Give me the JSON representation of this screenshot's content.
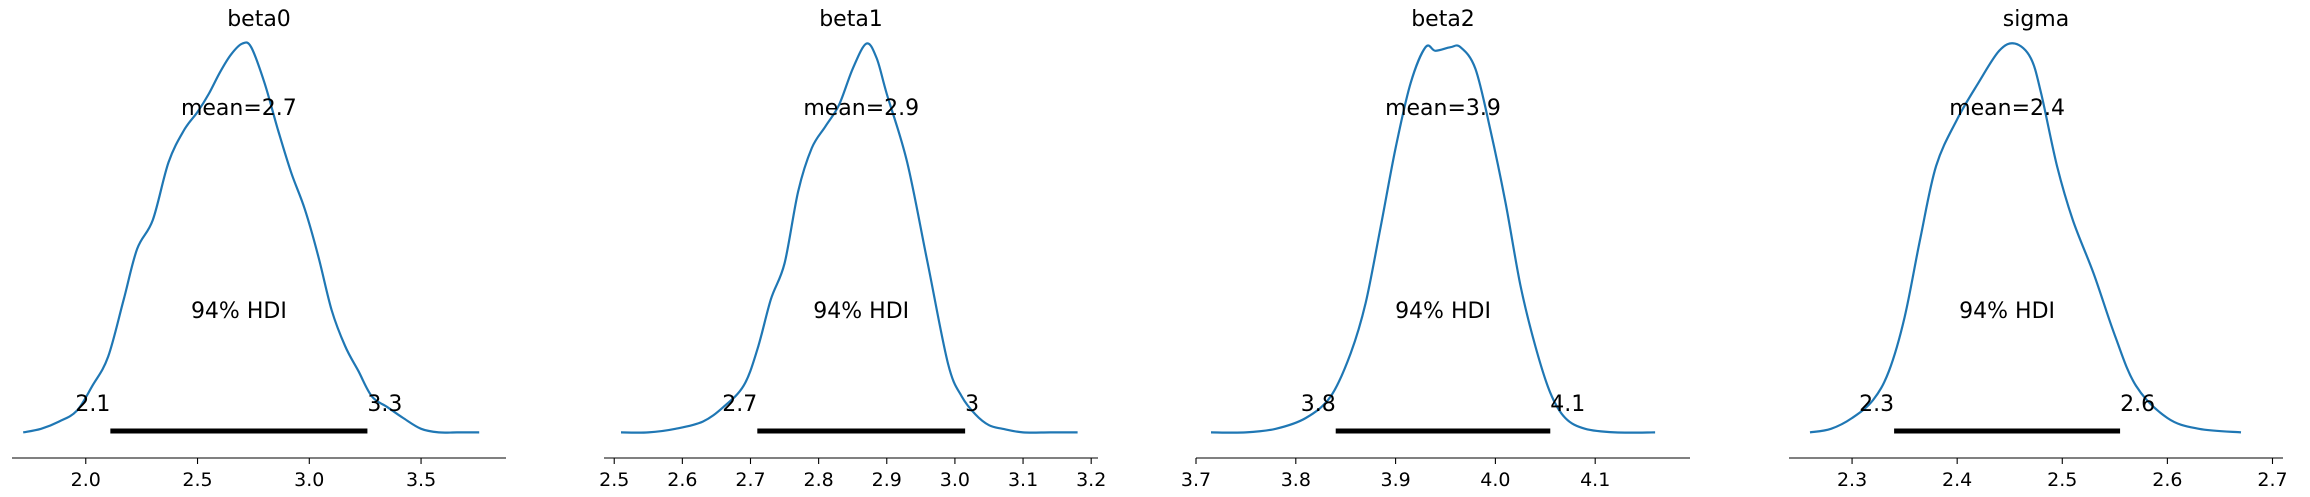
{
  "chart_data": [
    {
      "type": "density",
      "title": "beta0",
      "mean_label": "mean=2.7",
      "hdi_label": "94% HDI",
      "hdi_low_label": "2.1",
      "hdi_high_label": "3.3",
      "hdi": [
        2.11,
        3.26
      ],
      "xlim": [
        1.67,
        3.88
      ],
      "xticks": [
        "2.0",
        "2.5",
        "3.0",
        "3.5"
      ],
      "xtick_values": [
        2.0,
        2.5,
        3.0,
        3.5
      ],
      "ylim": [
        0,
        1.1
      ],
      "line_color": "#1f77b4",
      "hdi_color": "#000000",
      "curve_x": [
        1.72,
        1.8,
        1.88,
        1.96,
        2.03,
        2.1,
        2.17,
        2.23,
        2.3,
        2.37,
        2.44,
        2.5,
        2.55,
        2.6,
        2.65,
        2.7,
        2.74,
        2.8,
        2.86,
        2.92,
        2.98,
        3.04,
        3.1,
        3.16,
        3.22,
        3.28,
        3.35,
        3.42,
        3.5,
        3.58,
        3.66,
        3.76
      ],
      "curve_y": [
        0.01,
        0.02,
        0.04,
        0.07,
        0.14,
        0.22,
        0.38,
        0.52,
        0.6,
        0.76,
        0.85,
        0.9,
        0.95,
        1.01,
        1.06,
        1.09,
        1.08,
        0.98,
        0.85,
        0.73,
        0.63,
        0.5,
        0.35,
        0.25,
        0.18,
        0.11,
        0.08,
        0.05,
        0.02,
        0.01,
        0.01,
        0.01
      ]
    },
    {
      "type": "density",
      "title": "beta1",
      "mean_label": "mean=2.9",
      "hdi_label": "94% HDI",
      "hdi_low_label": "2.7",
      "hdi_high_label": "3",
      "hdi": [
        2.71,
        3.015
      ],
      "xlim": [
        2.485,
        3.21
      ],
      "xticks": [
        "2.5",
        "2.6",
        "2.7",
        "2.8",
        "2.9",
        "3.0",
        "3.1",
        "3.2"
      ],
      "xtick_values": [
        2.5,
        2.6,
        2.7,
        2.8,
        2.9,
        3.0,
        3.1,
        3.2
      ],
      "ylim": [
        0,
        1.1
      ],
      "line_color": "#1f77b4",
      "hdi_color": "#000000",
      "curve_x": [
        2.51,
        2.55,
        2.59,
        2.63,
        2.66,
        2.69,
        2.71,
        2.73,
        2.75,
        2.77,
        2.79,
        2.81,
        2.83,
        2.85,
        2.87,
        2.885,
        2.9,
        2.93,
        2.96,
        2.99,
        3.01,
        3.03,
        3.05,
        3.07,
        3.1,
        3.14,
        3.18
      ],
      "curve_y": [
        0.01,
        0.01,
        0.02,
        0.04,
        0.08,
        0.14,
        0.24,
        0.38,
        0.48,
        0.68,
        0.8,
        0.86,
        0.92,
        1.02,
        1.09,
        1.05,
        0.95,
        0.76,
        0.48,
        0.2,
        0.11,
        0.06,
        0.03,
        0.02,
        0.01,
        0.01,
        0.01
      ]
    },
    {
      "type": "density",
      "title": "beta2",
      "mean_label": "mean=3.9",
      "hdi_label": "94% HDI",
      "hdi_low_label": "3.8",
      "hdi_high_label": "4.1",
      "hdi": [
        3.84,
        4.055
      ],
      "xlim": [
        3.7,
        4.195
      ],
      "xticks": [
        "3.7",
        "3.8",
        "3.9",
        "4.0",
        "4.1"
      ],
      "xtick_values": [
        3.7,
        3.8,
        3.9,
        4.0,
        4.1
      ],
      "ylim": [
        0,
        1.1
      ],
      "line_color": "#1f77b4",
      "hdi_color": "#000000",
      "curve_x": [
        3.715,
        3.75,
        3.78,
        3.81,
        3.835,
        3.855,
        3.87,
        3.885,
        3.9,
        3.915,
        3.93,
        3.94,
        3.955,
        3.965,
        3.98,
        3.995,
        4.01,
        4.025,
        4.04,
        4.055,
        4.07,
        4.09,
        4.12,
        4.16
      ],
      "curve_y": [
        0.01,
        0.01,
        0.02,
        0.05,
        0.11,
        0.23,
        0.37,
        0.58,
        0.8,
        0.98,
        1.08,
        1.07,
        1.08,
        1.08,
        1.02,
        0.85,
        0.65,
        0.42,
        0.25,
        0.12,
        0.05,
        0.02,
        0.01,
        0.01
      ]
    },
    {
      "type": "density",
      "title": "sigma",
      "mean_label": "mean=2.4",
      "hdi_label": "94% HDI",
      "hdi_low_label": "2.3",
      "hdi_high_label": "2.6",
      "hdi": [
        2.34,
        2.555
      ],
      "xlim": [
        2.24,
        2.71
      ],
      "xticks": [
        "2.3",
        "2.4",
        "2.5",
        "2.6",
        "2.7"
      ],
      "xtick_values": [
        2.3,
        2.4,
        2.5,
        2.6,
        2.7
      ],
      "ylim": [
        0,
        1.1
      ],
      "line_color": "#1f77b4",
      "hdi_color": "#000000",
      "curve_x": [
        2.26,
        2.28,
        2.3,
        2.32,
        2.335,
        2.35,
        2.365,
        2.38,
        2.4,
        2.42,
        2.44,
        2.455,
        2.47,
        2.48,
        2.495,
        2.51,
        2.53,
        2.55,
        2.57,
        2.6,
        2.63,
        2.67
      ],
      "curve_y": [
        0.01,
        0.02,
        0.05,
        0.1,
        0.18,
        0.33,
        0.55,
        0.75,
        0.88,
        0.98,
        1.07,
        1.09,
        1.05,
        0.95,
        0.75,
        0.6,
        0.45,
        0.28,
        0.14,
        0.05,
        0.02,
        0.01
      ]
    }
  ]
}
